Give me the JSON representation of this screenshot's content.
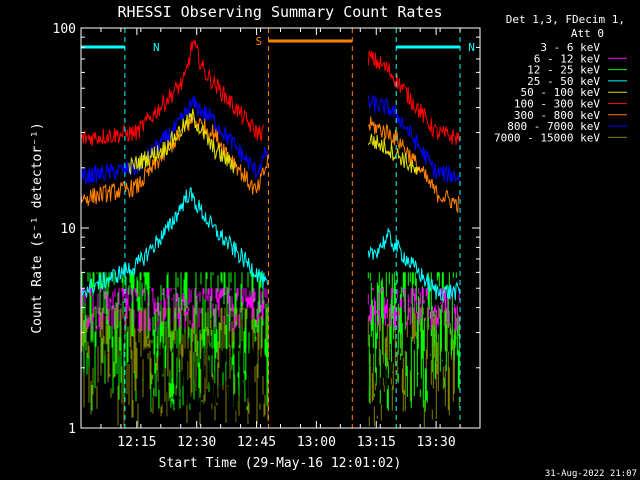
{
  "chart_data": {
    "type": "line",
    "title": "RHESSI Observing Summary Count Rates",
    "xlabel": "Start Time (29-May-16 12:01:02)",
    "ylabel": "Count Rate (s⁻¹ detector⁻¹)",
    "yscale": "log",
    "ylim": [
      1,
      100
    ],
    "xlim": [
      "12:01",
      "13:41"
    ],
    "x_ticks": [
      "12:15",
      "12:30",
      "12:45",
      "13:00",
      "13:15",
      "13:30"
    ],
    "y_ticks": [
      "1",
      "10",
      "100"
    ],
    "grid": false,
    "legend_position": "right",
    "legend_header": [
      "Det 1,3, FDecim 1,",
      "Att 0"
    ],
    "series": [
      {
        "name": "3 - 6 keV",
        "color": "#000000"
      },
      {
        "name": "6 - 12 keV",
        "color": "#ff00ff"
      },
      {
        "name": "12 - 25 keV",
        "color": "#00ff00"
      },
      {
        "name": "25 - 50 keV",
        "color": "#00ffff"
      },
      {
        "name": "50 - 100 keV",
        "color": "#e0e000"
      },
      {
        "name": "100 - 300 keV",
        "color": "#ff0000"
      },
      {
        "name": "300 - 800 keV",
        "color": "#ff8000"
      },
      {
        "name": "800 - 7000 keV",
        "color": "#0000ff"
      },
      {
        "name": "7000 - 15000 keV",
        "color": "#808000"
      }
    ],
    "plotted_traces": [
      {
        "color": "#ff0000",
        "segments": [
          {
            "x": [
              "12:01",
              "12:15",
              "12:27",
              "12:29",
              "12:32",
              "12:45",
              "12:47"
            ],
            "y": [
              28,
              30,
              55,
              85,
              60,
              30,
              30
            ]
          },
          {
            "x": [
              "13:13",
              "13:18",
              "13:20",
              "13:30",
              "13:36"
            ],
            "y": [
              72,
              62,
              55,
              30,
              28
            ]
          }
        ]
      },
      {
        "color": "#0000ff",
        "segments": [
          {
            "x": [
              "12:01",
              "12:15",
              "12:25",
              "12:29",
              "12:34",
              "12:45",
              "12:48"
            ],
            "y": [
              18,
              20,
              32,
              42,
              35,
              19,
              25
            ]
          },
          {
            "x": [
              "13:13",
              "13:18",
              "13:21",
              "13:30",
              "13:36"
            ],
            "y": [
              42,
              40,
              35,
              19,
              18
            ]
          }
        ]
      },
      {
        "color": "#ff8000",
        "segments": [
          {
            "x": [
              "12:01",
              "12:15",
              "12:25",
              "12:29",
              "12:34",
              "12:45",
              "12:48"
            ],
            "y": [
              14,
              16,
              28,
              35,
              30,
              15,
              22
            ]
          },
          {
            "x": [
              "13:13",
              "13:18",
              "13:21",
              "13:30",
              "13:36"
            ],
            "y": [
              33,
              30,
              27,
              15,
              13
            ]
          }
        ]
      },
      {
        "color": "#e0e000",
        "segments": [
          {
            "x": [
              "12:13",
              "12:22",
              "12:29",
              "12:34",
              "12:40"
            ],
            "y": [
              20,
              25,
              36,
              25,
              20
            ]
          },
          {
            "x": [
              "13:13",
              "13:18",
              "13:22",
              "13:26"
            ],
            "y": [
              28,
              25,
              22,
              18
            ]
          }
        ]
      },
      {
        "color": "#00ffff",
        "segments": [
          {
            "x": [
              "12:01",
              "12:15",
              "12:23",
              "12:28",
              "12:34",
              "12:45",
              "12:48"
            ],
            "y": [
              4.8,
              6.5,
              10,
              15,
              10,
              6,
              5
            ]
          },
          {
            "x": [
              "13:13",
              "13:18",
              "13:24",
              "13:30",
              "13:36"
            ],
            "y": [
              7,
              9,
              6.5,
              4.8,
              4.8
            ]
          }
        ]
      }
    ],
    "scatter_bands": [
      {
        "color": "#808000",
        "ranges": [
          {
            "x": [
              "12:01",
              "12:48"
            ],
            "y": [
              1,
              4
            ]
          },
          {
            "x": [
              "13:13",
              "13:36"
            ],
            "y": [
              1,
              4
            ]
          }
        ]
      },
      {
        "color": "#00ff00",
        "ranges": [
          {
            "x": [
              "12:01",
              "12:48"
            ],
            "y": [
              1.2,
              6
            ]
          },
          {
            "x": [
              "13:13",
              "13:36"
            ],
            "y": [
              1.2,
              6
            ]
          }
        ]
      },
      {
        "color": "#ff00ff",
        "ranges": [
          {
            "x": [
              "12:01",
              "12:48"
            ],
            "y": [
              3,
              5
            ]
          },
          {
            "x": [
              "13:13",
              "13:36"
            ],
            "y": [
              3,
              5
            ]
          }
        ]
      },
      {
        "color": "#000000",
        "ranges": [
          {
            "x": [
              "12:17",
              "12:45"
            ],
            "y": [
              1,
              2.5
            ]
          },
          {
            "x": [
              "13:13",
              "13:22"
            ],
            "y": [
              1.5,
              2.5
            ]
          }
        ]
      }
    ],
    "markers": [
      {
        "label": "N",
        "color": "#00ffff",
        "x_range": [
          "12:01",
          "12:12"
        ],
        "boundaries": [
          "12:12"
        ]
      },
      {
        "label": "N",
        "color": "#00ffff",
        "x_range": [
          "13:20",
          "13:36"
        ],
        "boundaries": [
          "13:20",
          "13:36"
        ]
      },
      {
        "label": "S",
        "color": "#ff8000",
        "x_range": [
          "12:48",
          "13:09"
        ],
        "boundaries": [
          "12:48",
          "13:09"
        ]
      }
    ],
    "timestamp": "31-Aug-2022 21:07"
  }
}
